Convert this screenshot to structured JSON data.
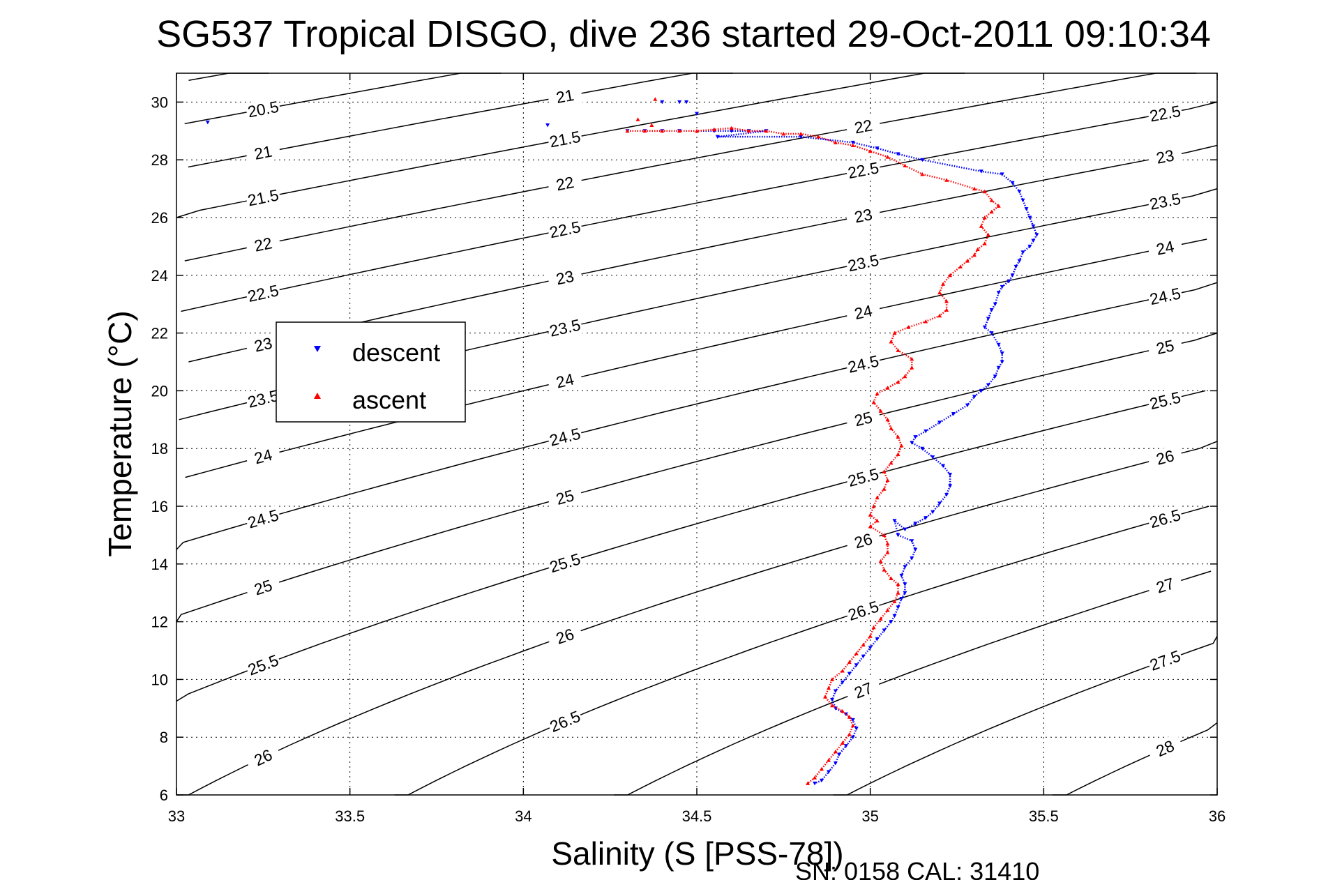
{
  "chart_data": {
    "type": "scatter",
    "title": "SG537 Tropical DISGO, dive 236 started 29-Oct-2011 09:10:34",
    "xlabel": "Salinity (S [PSS-78])",
    "ylabel": "Temperature (°C)",
    "xlim": [
      33,
      36
    ],
    "ylim": [
      6,
      31
    ],
    "xticks": [
      "33",
      "33.5",
      "34",
      "34.5",
      "35",
      "35.5",
      "36"
    ],
    "yticks": [
      "6",
      "8",
      "10",
      "12",
      "14",
      "16",
      "18",
      "20",
      "22",
      "24",
      "26",
      "28",
      "30"
    ],
    "grid": true,
    "legend": {
      "placement": "middle-left"
    },
    "footer": "SN: 0158  CAL: 31410",
    "contours": {
      "type": "sigma-t isopycnals",
      "color": "#000000",
      "levels": [
        "20.5",
        "21",
        "21.5",
        "22",
        "22.5",
        "23",
        "23.5",
        "24",
        "24.5",
        "25",
        "25.5",
        "26",
        "26.5",
        "27",
        "27.5",
        "28"
      ]
    },
    "series": [
      {
        "name": "descent",
        "color": "#0000ff",
        "marker": "triangle-down",
        "points": [
          [
            33.09,
            29.3
          ],
          [
            34.07,
            29.2
          ],
          [
            34.4,
            30.0
          ],
          [
            34.45,
            30.0
          ],
          [
            34.47,
            30.0
          ],
          [
            34.5,
            29.6
          ],
          [
            34.3,
            29.0
          ],
          [
            34.35,
            29.0
          ],
          [
            34.4,
            29.0
          ],
          [
            34.45,
            29.0
          ],
          [
            34.55,
            29.0
          ],
          [
            34.6,
            29.0
          ],
          [
            34.65,
            29.0
          ],
          [
            34.7,
            29.0
          ],
          [
            34.56,
            28.8
          ],
          [
            34.8,
            28.8
          ],
          [
            34.95,
            28.6
          ],
          [
            35.02,
            28.4
          ],
          [
            35.08,
            28.2
          ],
          [
            35.15,
            28.0
          ],
          [
            35.32,
            27.6
          ],
          [
            35.38,
            27.5
          ],
          [
            35.41,
            27.2
          ],
          [
            35.43,
            26.9
          ],
          [
            35.44,
            26.6
          ],
          [
            35.45,
            26.3
          ],
          [
            35.46,
            26.0
          ],
          [
            35.47,
            25.7
          ],
          [
            35.48,
            25.4
          ],
          [
            35.47,
            25.2
          ],
          [
            35.46,
            25.0
          ],
          [
            35.44,
            24.8
          ],
          [
            35.43,
            24.5
          ],
          [
            35.42,
            24.3
          ],
          [
            35.41,
            24.0
          ],
          [
            35.4,
            23.8
          ],
          [
            35.38,
            23.6
          ],
          [
            35.37,
            23.4
          ],
          [
            35.36,
            23.0
          ],
          [
            35.35,
            22.8
          ],
          [
            35.34,
            22.5
          ],
          [
            35.33,
            22.2
          ],
          [
            35.35,
            22.0
          ],
          [
            35.37,
            21.6
          ],
          [
            35.38,
            21.3
          ],
          [
            35.38,
            21.0
          ],
          [
            35.37,
            20.8
          ],
          [
            35.36,
            20.5
          ],
          [
            35.34,
            20.2
          ],
          [
            35.32,
            20.0
          ],
          [
            35.3,
            19.8
          ],
          [
            35.28,
            19.5
          ],
          [
            35.24,
            19.2
          ],
          [
            35.2,
            18.9
          ],
          [
            35.16,
            18.6
          ],
          [
            35.13,
            18.4
          ],
          [
            35.12,
            18.2
          ],
          [
            35.15,
            18.0
          ],
          [
            35.18,
            17.7
          ],
          [
            35.21,
            17.4
          ],
          [
            35.23,
            17.1
          ],
          [
            35.23,
            16.7
          ],
          [
            35.22,
            16.4
          ],
          [
            35.2,
            16.1
          ],
          [
            35.18,
            15.8
          ],
          [
            35.16,
            15.6
          ],
          [
            35.13,
            15.4
          ],
          [
            35.1,
            15.2
          ],
          [
            35.07,
            15.5
          ],
          [
            35.08,
            15.0
          ],
          [
            35.12,
            14.8
          ],
          [
            35.13,
            14.5
          ],
          [
            35.12,
            14.2
          ],
          [
            35.1,
            13.9
          ],
          [
            35.09,
            13.6
          ],
          [
            35.1,
            13.3
          ],
          [
            35.1,
            13.0
          ],
          [
            35.09,
            12.8
          ],
          [
            35.08,
            12.5
          ],
          [
            35.07,
            12.2
          ],
          [
            35.06,
            12.0
          ],
          [
            35.04,
            11.7
          ],
          [
            35.02,
            11.4
          ],
          [
            35.0,
            11.1
          ],
          [
            34.98,
            10.8
          ],
          [
            34.96,
            10.5
          ],
          [
            34.94,
            10.2
          ],
          [
            34.92,
            9.9
          ],
          [
            34.9,
            9.6
          ],
          [
            34.89,
            9.3
          ],
          [
            34.9,
            9.0
          ],
          [
            34.93,
            8.8
          ],
          [
            34.95,
            8.6
          ],
          [
            34.96,
            8.3
          ],
          [
            34.95,
            8.0
          ],
          [
            34.93,
            7.7
          ],
          [
            34.91,
            7.4
          ],
          [
            34.9,
            7.1
          ],
          [
            34.88,
            6.8
          ],
          [
            34.86,
            6.5
          ],
          [
            34.84,
            6.4
          ]
        ]
      },
      {
        "name": "ascent",
        "color": "#ff0000",
        "marker": "triangle-up",
        "points": [
          [
            34.38,
            30.1
          ],
          [
            34.33,
            29.4
          ],
          [
            34.37,
            29.2
          ],
          [
            34.3,
            29.0
          ],
          [
            34.35,
            29.0
          ],
          [
            34.4,
            29.0
          ],
          [
            34.45,
            29.0
          ],
          [
            34.5,
            29.0
          ],
          [
            34.55,
            29.05
          ],
          [
            34.6,
            29.1
          ],
          [
            34.65,
            29.0
          ],
          [
            34.7,
            29.0
          ],
          [
            34.75,
            28.9
          ],
          [
            34.8,
            28.9
          ],
          [
            34.85,
            28.8
          ],
          [
            34.9,
            28.6
          ],
          [
            34.95,
            28.5
          ],
          [
            35.0,
            28.3
          ],
          [
            35.05,
            28.1
          ],
          [
            35.1,
            27.8
          ],
          [
            35.15,
            27.5
          ],
          [
            35.22,
            27.3
          ],
          [
            35.3,
            27.0
          ],
          [
            35.33,
            26.9
          ],
          [
            35.35,
            26.6
          ],
          [
            35.37,
            26.4
          ],
          [
            35.35,
            26.2
          ],
          [
            35.33,
            26.0
          ],
          [
            35.32,
            25.7
          ],
          [
            35.34,
            25.4
          ],
          [
            35.33,
            25.1
          ],
          [
            35.31,
            24.9
          ],
          [
            35.3,
            24.7
          ],
          [
            35.28,
            24.5
          ],
          [
            35.26,
            24.3
          ],
          [
            35.23,
            24.0
          ],
          [
            35.21,
            23.7
          ],
          [
            35.2,
            23.4
          ],
          [
            35.22,
            23.1
          ],
          [
            35.22,
            22.8
          ],
          [
            35.2,
            22.6
          ],
          [
            35.16,
            22.4
          ],
          [
            35.11,
            22.2
          ],
          [
            35.07,
            22.0
          ],
          [
            35.06,
            21.7
          ],
          [
            35.08,
            21.4
          ],
          [
            35.12,
            21.1
          ],
          [
            35.12,
            20.8
          ],
          [
            35.1,
            20.5
          ],
          [
            35.08,
            20.3
          ],
          [
            35.05,
            20.1
          ],
          [
            35.02,
            19.9
          ],
          [
            35.01,
            19.6
          ],
          [
            35.03,
            19.3
          ],
          [
            35.05,
            19.0
          ],
          [
            35.06,
            18.7
          ],
          [
            35.08,
            18.4
          ],
          [
            35.09,
            18.1
          ],
          [
            35.08,
            17.8
          ],
          [
            35.06,
            17.5
          ],
          [
            35.04,
            17.2
          ],
          [
            35.05,
            16.9
          ],
          [
            35.04,
            16.6
          ],
          [
            35.02,
            16.3
          ],
          [
            35.01,
            16.0
          ],
          [
            35.0,
            15.7
          ],
          [
            35.02,
            15.5
          ],
          [
            35.0,
            15.3
          ],
          [
            35.04,
            15.0
          ],
          [
            35.05,
            14.7
          ],
          [
            35.05,
            14.4
          ],
          [
            35.03,
            14.1
          ],
          [
            35.04,
            13.8
          ],
          [
            35.06,
            13.5
          ],
          [
            35.08,
            13.3
          ],
          [
            35.08,
            13.0
          ],
          [
            35.07,
            12.7
          ],
          [
            35.05,
            12.4
          ],
          [
            35.03,
            12.1
          ],
          [
            35.01,
            11.8
          ],
          [
            35.0,
            11.5
          ],
          [
            34.98,
            11.2
          ],
          [
            34.96,
            10.9
          ],
          [
            34.94,
            10.6
          ],
          [
            34.92,
            10.3
          ],
          [
            34.89,
            10.0
          ],
          [
            34.88,
            9.7
          ],
          [
            34.87,
            9.4
          ],
          [
            34.89,
            9.1
          ],
          [
            34.92,
            8.9
          ],
          [
            34.94,
            8.7
          ],
          [
            34.95,
            8.4
          ],
          [
            34.94,
            8.1
          ],
          [
            34.92,
            7.8
          ],
          [
            34.9,
            7.5
          ],
          [
            34.88,
            7.2
          ],
          [
            34.86,
            6.9
          ],
          [
            34.84,
            6.6
          ],
          [
            34.82,
            6.4
          ]
        ]
      }
    ]
  }
}
